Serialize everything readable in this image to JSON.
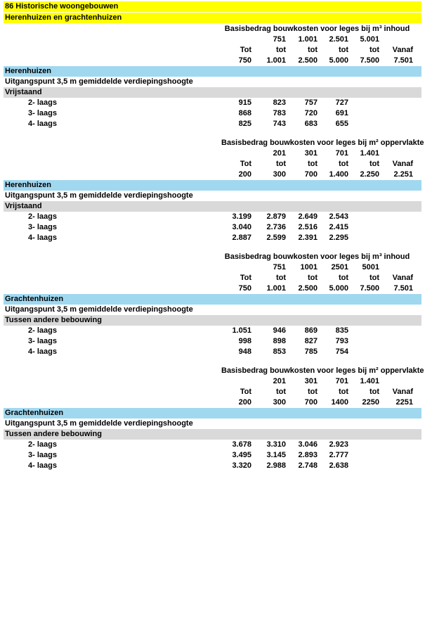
{
  "header": {
    "line1": "86 Historische woongebouwen",
    "line2": "Herenhuizen en grachtenhuizen"
  },
  "colors": {
    "highlight_yellow": "#FFFF00",
    "section_cyan": "#A0D8F0",
    "subsection_gray": "#D9D9D9"
  },
  "tables": [
    {
      "title": "Basisbedrag bouwkosten voor leges bij m³ inhoud",
      "range_upper": [
        "",
        "751",
        "1.001",
        "2.501",
        "5.001",
        ""
      ],
      "range_labels": [
        "Tot",
        "tot",
        "tot",
        "tot",
        "tot",
        "Vanaf"
      ],
      "range_lower": [
        "750",
        "1.001",
        "2.500",
        "5.000",
        "7.500",
        "7.501"
      ],
      "section": "Herenhuizen",
      "note": "Uitgangspunt 3,5 m gemiddelde verdiepingshoogte",
      "subsection": "Vrijstaand",
      "rows": [
        {
          "label": "2- laags",
          "values": [
            "915",
            "823",
            "757",
            "727",
            "",
            ""
          ]
        },
        {
          "label": "3- laags",
          "values": [
            "868",
            "783",
            "720",
            "691",
            "",
            ""
          ]
        },
        {
          "label": "4- laags",
          "values": [
            "825",
            "743",
            "683",
            "655",
            "",
            ""
          ]
        }
      ]
    },
    {
      "title": "Basisbedrag bouwkosten voor leges bij m² oppervlakte",
      "range_upper": [
        "",
        "201",
        "301",
        "701",
        "1.401",
        ""
      ],
      "range_labels": [
        "Tot",
        "tot",
        "tot",
        "tot",
        "tot",
        "Vanaf"
      ],
      "range_lower": [
        "200",
        "300",
        "700",
        "1.400",
        "2.250",
        "2.251"
      ],
      "section": "Herenhuizen",
      "note": "Uitgangspunt 3,5 m gemiddelde verdiepingshoogte",
      "subsection": "Vrijstaand",
      "rows": [
        {
          "label": "2- laags",
          "values": [
            "3.199",
            "2.879",
            "2.649",
            "2.543",
            "",
            ""
          ]
        },
        {
          "label": "3- laags",
          "values": [
            "3.040",
            "2.736",
            "2.516",
            "2.415",
            "",
            ""
          ]
        },
        {
          "label": "4- laags",
          "values": [
            "2.887",
            "2.599",
            "2.391",
            "2.295",
            "",
            ""
          ]
        }
      ]
    },
    {
      "title": "Basisbedrag bouwkosten voor leges bij m³ inhoud",
      "range_upper": [
        "",
        "751",
        "1001",
        "2501",
        "5001",
        ""
      ],
      "range_labels": [
        "Tot",
        "tot",
        "tot",
        "tot",
        "tot",
        "Vanaf"
      ],
      "range_lower": [
        "750",
        "1.001",
        "2.500",
        "5.000",
        "7.500",
        "7.501"
      ],
      "section": "Grachtenhuizen",
      "note": "Uitgangspunt 3,5 m gemiddelde verdiepingshoogte",
      "subsection": "Tussen andere bebouwing",
      "rows": [
        {
          "label": "2- laags",
          "values": [
            "1.051",
            "946",
            "869",
            "835",
            "",
            ""
          ]
        },
        {
          "label": "3- laags",
          "values": [
            "998",
            "898",
            "827",
            "793",
            "",
            ""
          ]
        },
        {
          "label": "4- laags",
          "values": [
            "948",
            "853",
            "785",
            "754",
            "",
            ""
          ]
        }
      ]
    },
    {
      "title": "Basisbedrag bouwkosten voor leges bij m² oppervlakte",
      "range_upper": [
        "",
        "201",
        "301",
        "701",
        "1.401",
        ""
      ],
      "range_labels": [
        "Tot",
        "tot",
        "tot",
        "tot",
        "tot",
        "Vanaf"
      ],
      "range_lower": [
        "200",
        "300",
        "700",
        "1400",
        "2250",
        "2251"
      ],
      "section": "Grachtenhuizen",
      "note": "Uitgangspunt 3,5 m gemiddelde verdiepingshoogte",
      "subsection": "Tussen andere bebouwing",
      "rows": [
        {
          "label": "2- laags",
          "values": [
            "3.678",
            "3.310",
            "3.046",
            "2.923",
            "",
            ""
          ]
        },
        {
          "label": "3- laags",
          "values": [
            "3.495",
            "3.145",
            "2.893",
            "2.777",
            "",
            ""
          ]
        },
        {
          "label": "4- laags",
          "values": [
            "3.320",
            "2.988",
            "2.748",
            "2.638",
            "",
            ""
          ]
        }
      ]
    }
  ]
}
